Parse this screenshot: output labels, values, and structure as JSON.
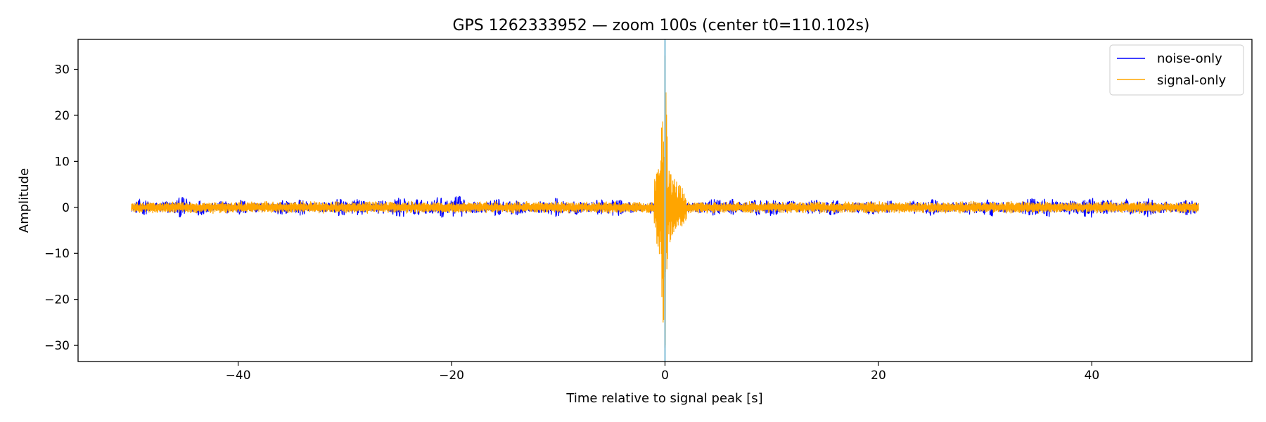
{
  "chart_data": {
    "type": "line",
    "title": "GPS 1262333952 — zoom 100s (center t0=110.102s)",
    "xlabel": "Time relative to signal peak [s]",
    "ylabel": "Amplitude",
    "xlim": [
      -55,
      55
    ],
    "ylim": [
      -33.5,
      36.5
    ],
    "xticks": [
      -40,
      -20,
      0,
      20,
      40
    ],
    "yticks": [
      -30,
      -20,
      -10,
      0,
      10,
      20,
      30
    ],
    "grid": false,
    "legend_position": "top-right",
    "vline": {
      "x": 0,
      "color": "#8fc4dc"
    },
    "series": [
      {
        "name": "noise-only",
        "color": "#0000ff",
        "x_range": [
          -50,
          50
        ],
        "envelope_points": [
          {
            "x": -50,
            "amplitude": 1.6
          },
          {
            "x": -47,
            "amplitude": 2.5
          },
          {
            "x": -40,
            "amplitude": 1.8
          },
          {
            "x": -32,
            "amplitude": 2.0
          },
          {
            "x": -25,
            "amplitude": 2.4
          },
          {
            "x": -22.5,
            "amplitude": 3.0
          },
          {
            "x": -15,
            "amplitude": 2.0
          },
          {
            "x": -7,
            "amplitude": 2.2
          },
          {
            "x": 0,
            "amplitude": 1.8
          },
          {
            "x": 8,
            "amplitude": 2.3
          },
          {
            "x": 20,
            "amplitude": 1.8
          },
          {
            "x": 30,
            "amplitude": 2.1
          },
          {
            "x": 38,
            "amplitude": 2.5
          },
          {
            "x": 50,
            "amplitude": 2.0
          }
        ]
      },
      {
        "name": "signal-only",
        "color": "#ffa500",
        "x_range": [
          -50,
          50
        ],
        "baseline_amplitude": 1.4,
        "peak": {
          "x": 0,
          "max": 33,
          "min": -30
        },
        "burst_points": [
          {
            "x": -1.0,
            "amplitude": 6
          },
          {
            "x": -0.6,
            "amplitude": 10
          },
          {
            "x": -0.3,
            "amplitude": 20
          },
          {
            "x": 0,
            "amplitude": 33
          },
          {
            "x": 0.3,
            "amplitude": 9
          },
          {
            "x": 0.8,
            "amplitude": 7
          },
          {
            "x": 2.0,
            "amplitude": 3
          }
        ]
      }
    ]
  }
}
